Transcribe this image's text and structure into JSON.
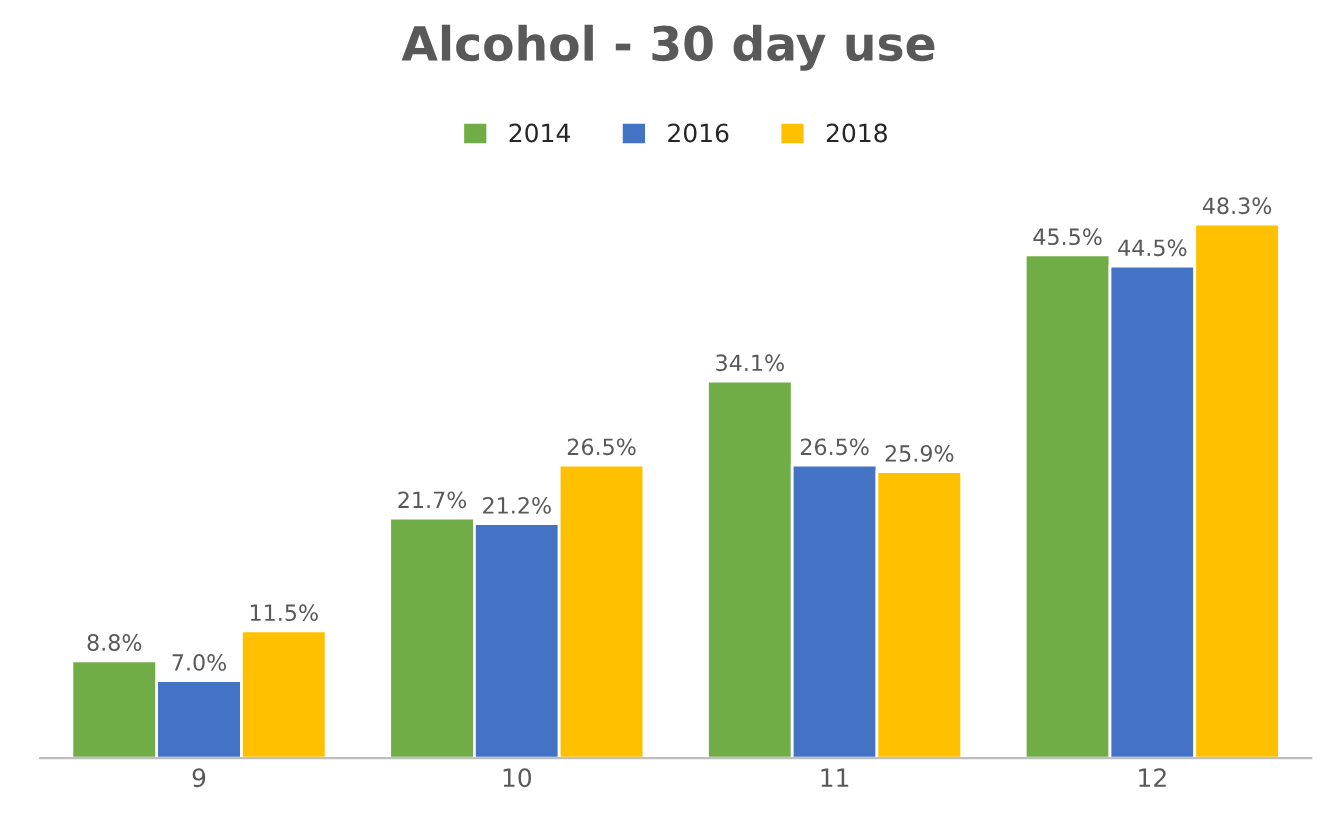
{
  "chart_data": {
    "type": "bar",
    "title": "Alcohol - 30 day use",
    "categories": [
      "9",
      "10",
      "11",
      "12"
    ],
    "series": [
      {
        "name": "2014",
        "color": "#70ad47",
        "values": [
          8.8,
          21.7,
          34.1,
          45.5
        ],
        "value_labels": [
          "8.8%",
          "21.7%",
          "34.1%",
          "45.5%"
        ]
      },
      {
        "name": "2016",
        "color": "#4472c4",
        "values": [
          7.0,
          21.2,
          26.5,
          44.5
        ],
        "value_labels": [
          "7.0%",
          "21.2%",
          "26.5%",
          "44.5%"
        ]
      },
      {
        "name": "2018",
        "color": "#ffc000",
        "values": [
          11.5,
          26.5,
          25.9,
          48.3
        ],
        "value_labels": [
          "11.5%",
          "26.5%",
          "25.9%",
          "48.3%"
        ]
      }
    ],
    "legend": "top",
    "tick_labels": "x",
    "grid": false
  }
}
